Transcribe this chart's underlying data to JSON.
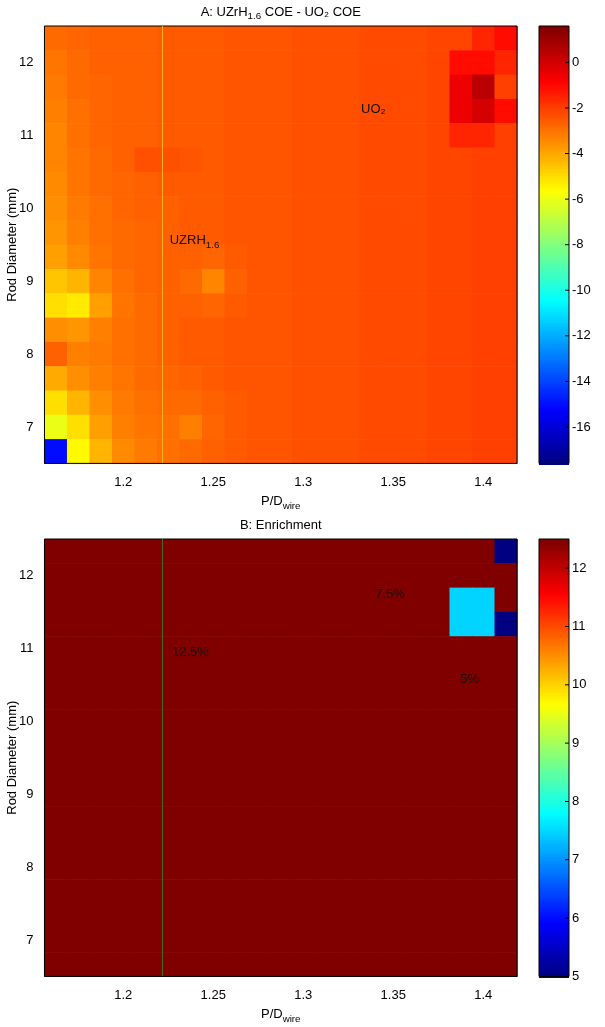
{
  "chart_data": [
    {
      "type": "heatmap",
      "title": "A: UZrH$_{1.6}$ COE - UO₂ COE",
      "xlabel": "P/D$_{wire}$",
      "ylabel": "Rod Diameter (mm)",
      "categories": [
        null,
        null,
        null,
        "1.2",
        null,
        null,
        null,
        "1.25",
        null,
        null,
        null,
        "1.3",
        null,
        null,
        null,
        "1.35",
        null,
        null,
        null,
        "1.4",
        null
      ],
      "y_categories": [
        null,
        "12",
        null,
        null,
        "11",
        null,
        null,
        "10",
        null,
        null,
        "9",
        null,
        null,
        "8",
        null,
        null,
        "7",
        null
      ],
      "cells": [
        [
          -2.8,
          -2.7,
          -2.6,
          -2.6,
          -2.6,
          -2.5,
          -2.5,
          -2.5,
          -2.4,
          -2.4,
          -2.4,
          -2.3,
          -2.3,
          -2.3,
          -2.2,
          -2.2,
          -2.2,
          -2.1,
          -2.1,
          -1.5,
          -1
        ],
        [
          -3,
          -2.8,
          -2.6,
          -2.6,
          -2.6,
          -2.5,
          -2.5,
          -2.5,
          -2.4,
          -2.4,
          -2.4,
          -2.3,
          -2.3,
          -2.3,
          -2.2,
          -2.2,
          -2.2,
          -2.1,
          -1,
          -1,
          -1.5
        ],
        [
          -3.1,
          -2.8,
          -2.7,
          -2.6,
          -2.6,
          -2.5,
          -2.5,
          -2.5,
          -2.4,
          -2.4,
          -2.4,
          -2.3,
          -2.3,
          -2.3,
          -2.2,
          -2.2,
          -2.2,
          -2.1,
          -0.5,
          0.5,
          -2
        ],
        [
          -3.2,
          -2.9,
          -2.7,
          -2.6,
          -2.6,
          -2.5,
          -2.5,
          -2.5,
          -2.4,
          -2.4,
          -2.4,
          -2.3,
          -2.3,
          -2.3,
          -2.2,
          -2.2,
          -2.2,
          -2.1,
          -0.5,
          0,
          -1
        ],
        [
          -3.3,
          -2.9,
          -2.7,
          -2.6,
          -2.6,
          -2.5,
          -2.5,
          -2.5,
          -2.4,
          -2.4,
          -2.4,
          -2.3,
          -2.3,
          -2.3,
          -2.2,
          -2.2,
          -2.2,
          -2.1,
          -1.5,
          -1.5,
          -2
        ],
        [
          -3.3,
          -3,
          -2.8,
          -2.6,
          -2.3,
          -2.3,
          -2.4,
          -2.5,
          -2.4,
          -2.4,
          -2.4,
          -2.3,
          -2.3,
          -2.3,
          -2.2,
          -2.2,
          -2.2,
          -2.1,
          -2.1,
          -2,
          -2
        ],
        [
          -3.4,
          -3,
          -2.8,
          -2.7,
          -2.6,
          -2.5,
          -2.5,
          -2.5,
          -2.4,
          -2.4,
          -2.4,
          -2.3,
          -2.3,
          -2.3,
          -2.2,
          -2.2,
          -2.2,
          -2.1,
          -2.1,
          -2,
          -2
        ],
        [
          -3.5,
          -3.1,
          -2.9,
          -2.7,
          -2.6,
          -2.6,
          -2.5,
          -2.5,
          -2.4,
          -2.4,
          -2.4,
          -2.3,
          -2.3,
          -2.3,
          -2.2,
          -2.2,
          -2.2,
          -2.1,
          -2.1,
          -2,
          -2
        ],
        [
          -3.6,
          -3.2,
          -2.9,
          -2.8,
          -2.7,
          -2.6,
          -2.5,
          -2.5,
          -2.4,
          -2.4,
          -2.4,
          -2.3,
          -2.3,
          -2.3,
          -2.2,
          -2.2,
          -2.2,
          -2.1,
          -2.1,
          -2,
          -2
        ],
        [
          -3.8,
          -3.4,
          -3,
          -2.8,
          -2.7,
          -2.6,
          -2.6,
          -2.7,
          -2.5,
          -2.4,
          -2.4,
          -2.3,
          -2.3,
          -2.3,
          -2.2,
          -2.2,
          -2.2,
          -2.1,
          -2.1,
          -2,
          -2
        ],
        [
          -4.5,
          -4.2,
          -3.3,
          -2.9,
          -2.7,
          -2.6,
          -2.8,
          -3.3,
          -2.6,
          -2.4,
          -2.4,
          -2.3,
          -2.3,
          -2.3,
          -2.2,
          -2.2,
          -2.2,
          -2.1,
          -2.1,
          -2,
          -2
        ],
        [
          -5,
          -5.2,
          -3.8,
          -3,
          -2.8,
          -2.6,
          -2.6,
          -2.7,
          -2.5,
          -2.4,
          -2.4,
          -2.3,
          -2.3,
          -2.3,
          -2.2,
          -2.2,
          -2.2,
          -2.1,
          -2.1,
          -2,
          -2
        ],
        [
          -3.5,
          -3.6,
          -3.2,
          -2.9,
          -2.8,
          -2.6,
          -2.5,
          -2.5,
          -2.4,
          -2.4,
          -2.4,
          -2.3,
          -2.3,
          -2.3,
          -2.2,
          -2.2,
          -2.2,
          -2.1,
          -2.1,
          -2,
          -2
        ],
        [
          -2.6,
          -3.2,
          -3.1,
          -2.9,
          -2.8,
          -2.6,
          -2.5,
          -2.5,
          -2.4,
          -2.4,
          -2.4,
          -2.3,
          -2.3,
          -2.3,
          -2.2,
          -2.2,
          -2.2,
          -2.1,
          -2.1,
          -2,
          -2
        ],
        [
          -4,
          -3.5,
          -3.2,
          -3,
          -2.8,
          -2.7,
          -2.6,
          -2.5,
          -2.4,
          -2.4,
          -2.4,
          -2.3,
          -2.3,
          -2.3,
          -2.2,
          -2.2,
          -2.2,
          -2.1,
          -2.1,
          -2,
          -2
        ],
        [
          -5,
          -4.2,
          -3.5,
          -3.1,
          -2.9,
          -2.8,
          -2.8,
          -2.6,
          -2.5,
          -2.4,
          -2.4,
          -2.3,
          -2.3,
          -2.3,
          -2.2,
          -2.2,
          -2.2,
          -2.1,
          -2.1,
          -2,
          -2
        ],
        [
          -6,
          -5,
          -3.8,
          -3.2,
          -3,
          -2.9,
          -3.2,
          -2.7,
          -2.5,
          -2.4,
          -2.4,
          -2.3,
          -2.3,
          -2.3,
          -2.2,
          -2.2,
          -2.2,
          -2.1,
          -2.1,
          -2,
          -2
        ],
        [
          -15,
          -5.5,
          -4.2,
          -3.4,
          -3.1,
          -2.9,
          -2.8,
          -2.6,
          -2.5,
          -2.4,
          -2.4,
          -2.3,
          -2.3,
          -2.3,
          -2.2,
          -2.2,
          -2.2,
          -2.1,
          -2.1,
          -2,
          -2
        ]
      ],
      "clim": [
        -17.6,
        1.6
      ],
      "cticks": [
        -16,
        -14,
        -12,
        -10,
        -8,
        -6,
        -4,
        -2,
        0
      ],
      "annotations": [
        "UO₂",
        "UZRH$_{1.6}$"
      ]
    },
    {
      "type": "heatmap",
      "title": "B: Enrichment",
      "xlabel": "P/D$_{wire}$",
      "ylabel": "Rod Diameter (mm)",
      "categories": [
        null,
        null,
        null,
        "1.2",
        null,
        null,
        null,
        "1.25",
        null,
        null,
        null,
        "1.3",
        null,
        null,
        null,
        "1.35",
        null,
        null,
        null,
        "1.4",
        null
      ],
      "y_categories": [
        null,
        "12",
        null,
        null,
        "11",
        null,
        null,
        "10",
        null,
        null,
        "9",
        null,
        null,
        "8",
        null,
        null,
        "7",
        null
      ],
      "cells": [
        [
          12.5,
          12.5,
          12.5,
          12.5,
          12.5,
          12.5,
          12.5,
          12.5,
          12.5,
          12.5,
          12.5,
          12.5,
          12.5,
          12.5,
          12.5,
          12.5,
          12.5,
          12.5,
          12.5,
          12.5,
          5
        ],
        [
          12.5,
          12.5,
          12.5,
          12.5,
          12.5,
          12.5,
          12.5,
          12.5,
          12.5,
          12.5,
          12.5,
          12.5,
          12.5,
          12.5,
          12.5,
          12.5,
          12.5,
          12.5,
          12.5,
          12.5,
          12.5
        ],
        [
          12.5,
          12.5,
          12.5,
          12.5,
          12.5,
          12.5,
          12.5,
          12.5,
          12.5,
          12.5,
          12.5,
          12.5,
          12.5,
          12.5,
          12.5,
          12.5,
          12.5,
          12.5,
          7.5,
          7.5,
          12.5
        ],
        [
          12.5,
          12.5,
          12.5,
          12.5,
          12.5,
          12.5,
          12.5,
          12.5,
          12.5,
          12.5,
          12.5,
          12.5,
          12.5,
          12.5,
          12.5,
          12.5,
          12.5,
          12.5,
          7.5,
          7.5,
          5
        ],
        [
          12.5,
          12.5,
          12.5,
          12.5,
          12.5,
          12.5,
          12.5,
          12.5,
          12.5,
          12.5,
          12.5,
          12.5,
          12.5,
          12.5,
          12.5,
          12.5,
          12.5,
          12.5,
          12.5,
          12.5,
          12.5
        ],
        [
          12.5,
          12.5,
          12.5,
          12.5,
          12.5,
          12.5,
          12.5,
          12.5,
          12.5,
          12.5,
          12.5,
          12.5,
          12.5,
          12.5,
          12.5,
          12.5,
          12.5,
          12.5,
          12.5,
          12.5,
          12.5
        ],
        [
          12.5,
          12.5,
          12.5,
          12.5,
          12.5,
          12.5,
          12.5,
          12.5,
          12.5,
          12.5,
          12.5,
          12.5,
          12.5,
          12.5,
          12.5,
          12.5,
          12.5,
          12.5,
          12.5,
          12.5,
          12.5
        ],
        [
          12.5,
          12.5,
          12.5,
          12.5,
          12.5,
          12.5,
          12.5,
          12.5,
          12.5,
          12.5,
          12.5,
          12.5,
          12.5,
          12.5,
          12.5,
          12.5,
          12.5,
          12.5,
          12.5,
          12.5,
          12.5
        ],
        [
          12.5,
          12.5,
          12.5,
          12.5,
          12.5,
          12.5,
          12.5,
          12.5,
          12.5,
          12.5,
          12.5,
          12.5,
          12.5,
          12.5,
          12.5,
          12.5,
          12.5,
          12.5,
          12.5,
          12.5,
          12.5
        ],
        [
          12.5,
          12.5,
          12.5,
          12.5,
          12.5,
          12.5,
          12.5,
          12.5,
          12.5,
          12.5,
          12.5,
          12.5,
          12.5,
          12.5,
          12.5,
          12.5,
          12.5,
          12.5,
          12.5,
          12.5,
          12.5
        ],
        [
          12.5,
          12.5,
          12.5,
          12.5,
          12.5,
          12.5,
          12.5,
          12.5,
          12.5,
          12.5,
          12.5,
          12.5,
          12.5,
          12.5,
          12.5,
          12.5,
          12.5,
          12.5,
          12.5,
          12.5,
          12.5
        ],
        [
          12.5,
          12.5,
          12.5,
          12.5,
          12.5,
          12.5,
          12.5,
          12.5,
          12.5,
          12.5,
          12.5,
          12.5,
          12.5,
          12.5,
          12.5,
          12.5,
          12.5,
          12.5,
          12.5,
          12.5,
          12.5
        ],
        [
          12.5,
          12.5,
          12.5,
          12.5,
          12.5,
          12.5,
          12.5,
          12.5,
          12.5,
          12.5,
          12.5,
          12.5,
          12.5,
          12.5,
          12.5,
          12.5,
          12.5,
          12.5,
          12.5,
          12.5,
          12.5
        ],
        [
          12.5,
          12.5,
          12.5,
          12.5,
          12.5,
          12.5,
          12.5,
          12.5,
          12.5,
          12.5,
          12.5,
          12.5,
          12.5,
          12.5,
          12.5,
          12.5,
          12.5,
          12.5,
          12.5,
          12.5,
          12.5
        ],
        [
          12.5,
          12.5,
          12.5,
          12.5,
          12.5,
          12.5,
          12.5,
          12.5,
          12.5,
          12.5,
          12.5,
          12.5,
          12.5,
          12.5,
          12.5,
          12.5,
          12.5,
          12.5,
          12.5,
          12.5,
          12.5
        ],
        [
          12.5,
          12.5,
          12.5,
          12.5,
          12.5,
          12.5,
          12.5,
          12.5,
          12.5,
          12.5,
          12.5,
          12.5,
          12.5,
          12.5,
          12.5,
          12.5,
          12.5,
          12.5,
          12.5,
          12.5,
          12.5
        ],
        [
          12.5,
          12.5,
          12.5,
          12.5,
          12.5,
          12.5,
          12.5,
          12.5,
          12.5,
          12.5,
          12.5,
          12.5,
          12.5,
          12.5,
          12.5,
          12.5,
          12.5,
          12.5,
          12.5,
          12.5,
          12.5
        ],
        [
          12.5,
          12.5,
          12.5,
          12.5,
          12.5,
          12.5,
          12.5,
          12.5,
          12.5,
          12.5,
          12.5,
          12.5,
          12.5,
          12.5,
          12.5,
          12.5,
          12.5,
          12.5,
          12.5,
          12.5,
          12.5
        ]
      ],
      "clim": [
        5,
        12.5
      ],
      "cticks": [
        5,
        6,
        7,
        8,
        9,
        10,
        11,
        12
      ],
      "annotations": [
        "7.5%",
        "5%",
        "12.5%"
      ]
    }
  ]
}
